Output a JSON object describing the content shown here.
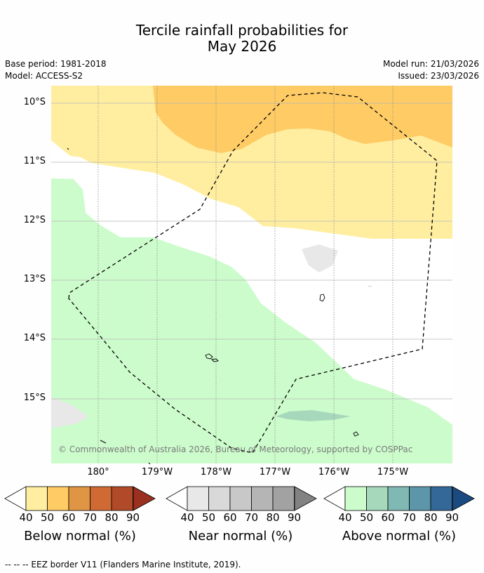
{
  "title": {
    "line1": "Tercile rainfall probabilities for",
    "line2": "May 2026"
  },
  "meta": {
    "base_period": "Base period: 1981-2018",
    "model": "Model: ACCESS-S2",
    "model_run": "Model run: 21/03/2026",
    "issued": "Issued: 23/03/2026"
  },
  "map": {
    "lat_labels": [
      "10°S",
      "11°S",
      "12°S",
      "13°S",
      "14°S",
      "15°S"
    ],
    "lon_labels": [
      "180°",
      "179°W",
      "178°W",
      "177°W",
      "176°W",
      "175°W"
    ],
    "copyright": "© Commonwealth of Australia 2026, Bureau of Meteorology, supported by COSPPac"
  },
  "colorbars": {
    "ticks": [
      "40",
      "50",
      "60",
      "70",
      "80",
      "90"
    ],
    "below": {
      "label": "Below normal (%)",
      "colors": [
        "#ffeea0",
        "#fecb65",
        "#e09545",
        "#d06a35",
        "#b04a28",
        "#9a3020"
      ]
    },
    "near": {
      "label": "Near normal (%)",
      "colors": [
        "#e8e8e8",
        "#d9d9d9",
        "#c8c8c8",
        "#b5b5b5",
        "#a2a2a2",
        "#828282"
      ]
    },
    "above": {
      "label": "Above normal (%)",
      "colors": [
        "#ccfccc",
        "#a6d8bb",
        "#80b8b3",
        "#5c96a8",
        "#336899",
        "#1a4a80"
      ]
    }
  },
  "footnote": "--  --  -- EEZ border V11 (Flanders Marine Institute, 2019)."
}
